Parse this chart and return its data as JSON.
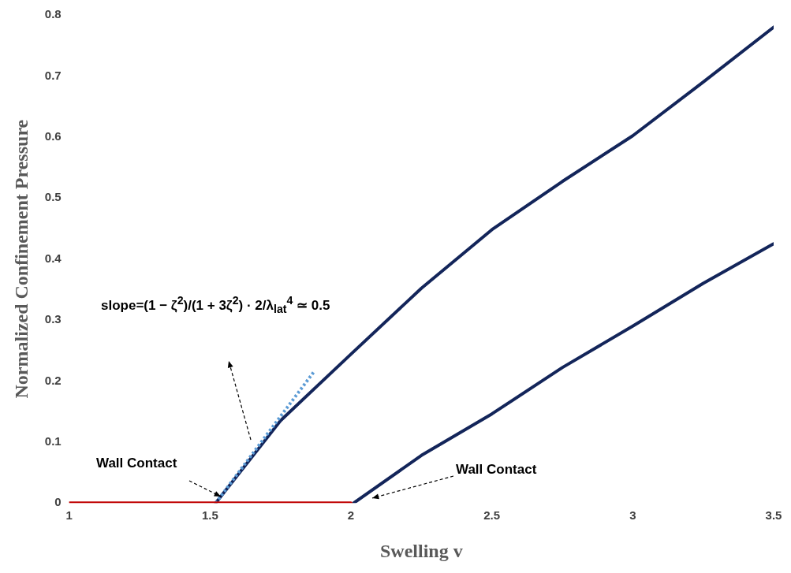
{
  "chart_data": {
    "type": "line",
    "xlabel": "Swelling v",
    "ylabel": "Normalized Confinement Pressure",
    "xlim": [
      1,
      3.5
    ],
    "xticks": [
      1,
      1.5,
      2,
      2.5,
      3,
      3.5
    ],
    "ylim": [
      0,
      0.8
    ],
    "yticks": [
      0,
      0.1,
      0.2,
      0.3,
      0.4,
      0.5,
      0.6,
      0.7,
      0.8
    ],
    "grid": false,
    "legend": false,
    "marker": "none",
    "series": [
      {
        "color": "#c00000",
        "x": [
          1,
          2
        ],
        "values": [
          0,
          0
        ],
        "line_style": "solid"
      },
      {
        "color": "#5b9bd5",
        "x": [
          1.52,
          1.87
        ],
        "values": [
          0,
          0.216
        ],
        "line_style": "dotted"
      },
      {
        "color": "#13255a",
        "x": [
          1.52,
          1.75,
          2,
          2.25,
          2.5,
          2.75,
          3,
          3.25,
          3.5
        ],
        "values": [
          0,
          0.135,
          0.244,
          0.352,
          0.448,
          0.527,
          0.602,
          0.69,
          0.78
        ],
        "line_style": "solid"
      },
      {
        "color": "#13255a",
        "x": [
          2.01,
          2.25,
          2.5,
          2.75,
          3,
          3.25,
          3.5
        ],
        "values": [
          0,
          0.078,
          0.146,
          0.222,
          0.29,
          0.36,
          0.425
        ],
        "line_style": "solid"
      }
    ],
    "annotations": [
      "slope=(1 − ζ$^{2}$)/(1 + 3ζ$^{2}$) · 2/λ$_{lat}$$^{4}$ ≃ 0.5",
      "Wall Contact",
      "Wall Contact"
    ]
  }
}
